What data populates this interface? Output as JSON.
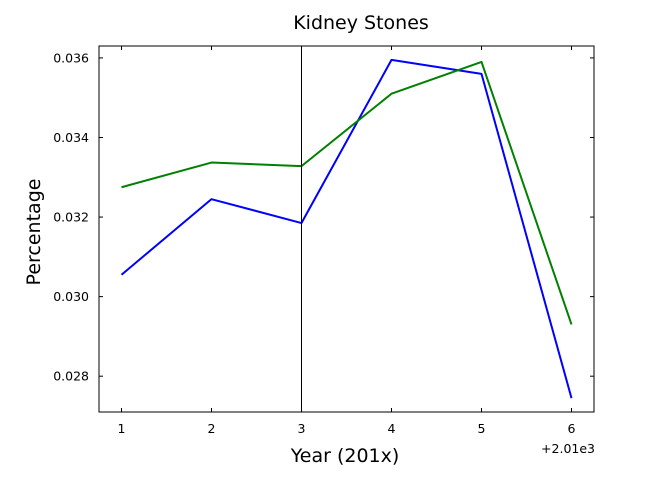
{
  "chart_data": {
    "type": "line",
    "title": "Kidney Stones",
    "xlabel": "Year (201x)",
    "ylabel": "Percentage",
    "x_offset_label": "+2.01e3",
    "x": [
      1,
      2,
      3,
      4,
      5,
      6
    ],
    "xlim": [
      0.75,
      6.25
    ],
    "ylim": [
      0.0271,
      0.0363
    ],
    "x_ticks": [
      1,
      2,
      3,
      4,
      5,
      6
    ],
    "x_tick_labels": [
      "1",
      "2",
      "3",
      "4",
      "5",
      "6"
    ],
    "y_ticks": [
      0.028,
      0.03,
      0.032,
      0.034,
      0.036
    ],
    "y_tick_labels": [
      "0.028",
      "0.030",
      "0.032",
      "0.034",
      "0.036"
    ],
    "vertical_line_x": 3,
    "grid": false,
    "series": [
      {
        "color": "#0000ff",
        "values": [
          0.03055,
          0.03245,
          0.03185,
          0.03595,
          0.0356,
          0.02745
        ]
      },
      {
        "color": "#008000",
        "values": [
          0.03275,
          0.03337,
          0.03328,
          0.0351,
          0.0359,
          0.0293
        ]
      }
    ]
  }
}
